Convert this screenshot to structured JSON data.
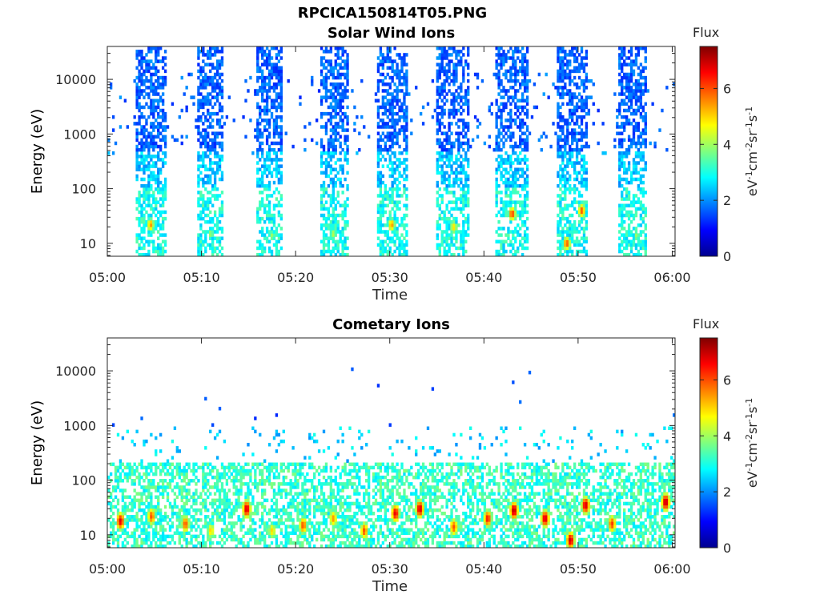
{
  "figure_title": "RPCICA150814T05.PNG",
  "panels": [
    {
      "title": "Solar Wind Ions",
      "colorbar_label": "Flux",
      "colorbar_units": "eV-1cm-2sr-1s-1"
    },
    {
      "title": "Cometary Ions",
      "colorbar_label": "Flux",
      "colorbar_units": "eV-1cm-2sr-1s-1"
    }
  ],
  "colormap": [
    "#00008f",
    "#0000ff",
    "#007fff",
    "#00ffff",
    "#7fff7f",
    "#ffff00",
    "#ff7f00",
    "#ff0000",
    "#7f0000"
  ],
  "chart_data": [
    {
      "type": "heatmap",
      "title": "Solar Wind Ions",
      "xlabel": "Time",
      "ylabel": "Energy (eV)",
      "x_ticks": [
        "05:00",
        "05:10",
        "05:20",
        "05:30",
        "05:40",
        "05:50",
        "06:00"
      ],
      "xlim_minutes": [
        0,
        60.3
      ],
      "y_scale": "log",
      "ylim": [
        5.8,
        40000
      ],
      "y_ticks": [
        10,
        100,
        1000,
        10000
      ],
      "y_tick_labels": [
        "10",
        "100",
        "1000",
        "10000"
      ],
      "colorbar": {
        "label": "Flux",
        "units": "eV-1cm-2sr-1s-1",
        "range": [
          0,
          7.5
        ],
        "ticks": [
          0,
          2,
          4,
          6
        ]
      },
      "bursts_minute_ranges": [
        [
          3.0,
          6.2
        ],
        [
          9.5,
          12.3
        ],
        [
          15.8,
          18.6
        ],
        [
          22.5,
          25.6
        ],
        [
          28.6,
          31.8
        ],
        [
          34.8,
          38.4
        ],
        [
          41.3,
          44.6
        ],
        [
          47.7,
          51.0
        ],
        [
          54.2,
          57.4
        ]
      ],
      "low_energy_peaks": [
        {
          "minute": 4.6,
          "energy_ev": 22,
          "flux": 5.5
        },
        {
          "minute": 11.0,
          "energy_ev": 15,
          "flux": 4.0
        },
        {
          "minute": 17.5,
          "energy_ev": 14,
          "flux": 4.0
        },
        {
          "minute": 24.0,
          "energy_ev": 15,
          "flux": 4.2
        },
        {
          "minute": 30.2,
          "energy_ev": 22,
          "flux": 5.5
        },
        {
          "minute": 36.8,
          "energy_ev": 20,
          "flux": 5.0
        },
        {
          "minute": 43.0,
          "energy_ev": 35,
          "flux": 6.2
        },
        {
          "minute": 48.8,
          "energy_ev": 10,
          "flux": 6.0
        },
        {
          "minute": 50.4,
          "energy_ev": 40,
          "flux": 6.0
        },
        {
          "minute": 56.2,
          "energy_ev": 14,
          "flux": 4.0
        }
      ]
    },
    {
      "type": "heatmap",
      "title": "Cometary Ions",
      "xlabel": "Time",
      "ylabel": "Energy (eV)",
      "x_ticks": [
        "05:00",
        "05:10",
        "05:20",
        "05:30",
        "05:40",
        "05:50",
        "06:00"
      ],
      "xlim_minutes": [
        0,
        60.3
      ],
      "y_scale": "log",
      "ylim": [
        5.8,
        40000
      ],
      "y_ticks": [
        10,
        100,
        1000,
        10000
      ],
      "y_tick_labels": [
        "10",
        "100",
        "1000",
        "10000"
      ],
      "colorbar": {
        "label": "Flux",
        "units": "eV-1cm-2sr-1s-1",
        "range": [
          0,
          7.5
        ],
        "ticks": [
          0,
          2,
          4,
          6
        ]
      },
      "peaks": [
        {
          "minute": 1.4,
          "energy_ev": 18,
          "flux": 6.8
        },
        {
          "minute": 4.7,
          "energy_ev": 22,
          "flux": 6.0
        },
        {
          "minute": 8.3,
          "energy_ev": 16,
          "flux": 6.0
        },
        {
          "minute": 11.0,
          "energy_ev": 12,
          "flux": 5.0
        },
        {
          "minute": 14.8,
          "energy_ev": 30,
          "flux": 7.0
        },
        {
          "minute": 17.5,
          "energy_ev": 12,
          "flux": 5.0
        },
        {
          "minute": 20.8,
          "energy_ev": 15,
          "flux": 6.0
        },
        {
          "minute": 24.0,
          "energy_ev": 20,
          "flux": 5.5
        },
        {
          "minute": 27.3,
          "energy_ev": 12,
          "flux": 6.0
        },
        {
          "minute": 30.6,
          "energy_ev": 25,
          "flux": 6.8
        },
        {
          "minute": 33.2,
          "energy_ev": 30,
          "flux": 7.0
        },
        {
          "minute": 36.8,
          "energy_ev": 14,
          "flux": 6.0
        },
        {
          "minute": 40.4,
          "energy_ev": 20,
          "flux": 6.5
        },
        {
          "minute": 43.2,
          "energy_ev": 28,
          "flux": 7.2
        },
        {
          "minute": 46.5,
          "energy_ev": 20,
          "flux": 7.0
        },
        {
          "minute": 49.2,
          "energy_ev": 8,
          "flux": 7.0
        },
        {
          "minute": 50.8,
          "energy_ev": 35,
          "flux": 7.0
        },
        {
          "minute": 53.6,
          "energy_ev": 16,
          "flux": 6.2
        },
        {
          "minute": 59.3,
          "energy_ev": 40,
          "flux": 7.2
        }
      ]
    }
  ]
}
